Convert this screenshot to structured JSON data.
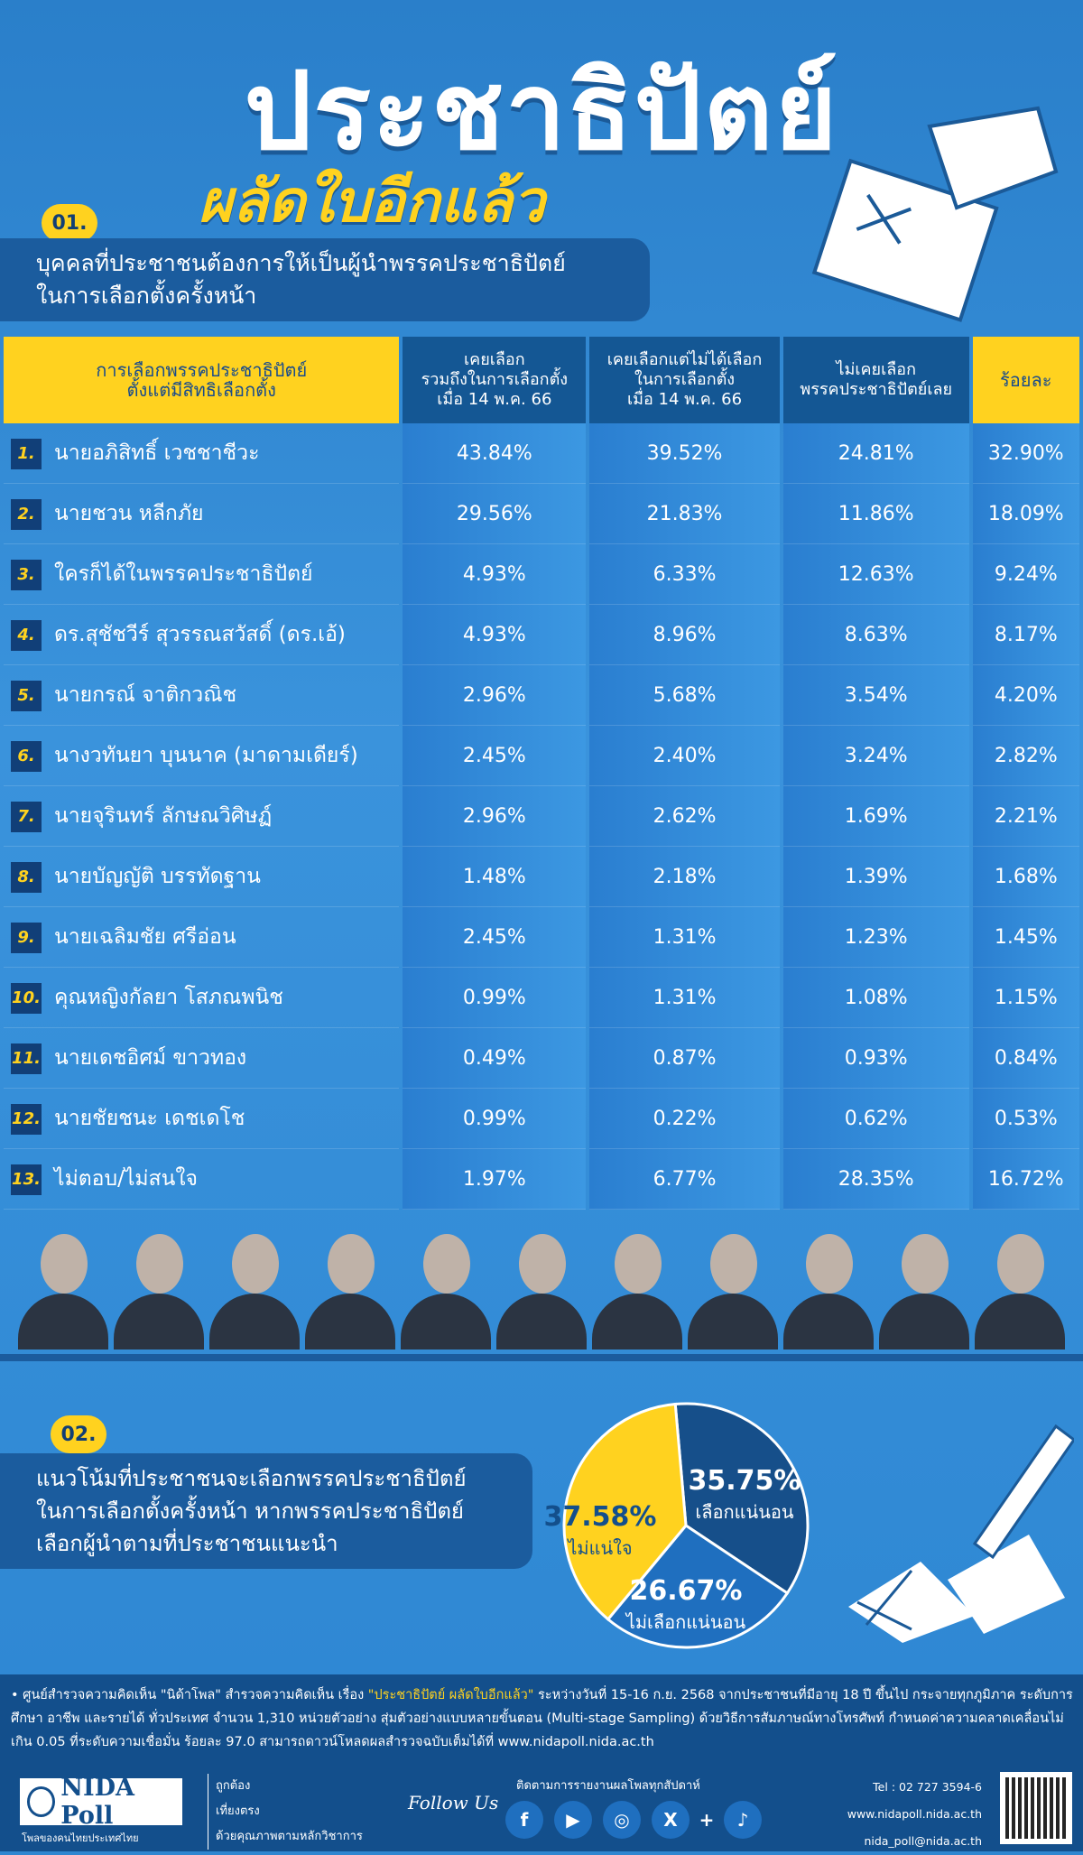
{
  "header": {
    "title": "ประชาธิปัตย์",
    "subtitle": "ผลัดใบอีกแล้ว"
  },
  "section1": {
    "badge": "01.",
    "heading_line1": "บุคคลที่ประชาชนต้องการให้เป็นผู้นำพรรคประชาธิปัตย์",
    "heading_line2": "ในการเลือกตั้งครั้งหน้า"
  },
  "section2": {
    "badge": "02.",
    "heading_line1": "แนวโน้มที่ประชาชนจะเลือกพรรคประชาธิปัตย์",
    "heading_line2": "ในการเลือกตั้งครั้งหน้า หากพรรคประชาธิปัตย์",
    "heading_line3": "เลือกผู้นำตามที่ประชาชนแนะนำ"
  },
  "colors": {
    "yellow": "#ffd21f",
    "navy": "#134f8c",
    "blue": "#2f86d0",
    "pie_navy": "#164f8a",
    "pie_blue": "#1f6fbf",
    "pie_yellow": "#ffd21f"
  },
  "chart_data": [
    {
      "type": "table",
      "columns": [
        {
          "line1": "การเลือกพรรคประชาธิปัตย์",
          "line2": "ตั้งแต่มีสิทธิเลือกตั้ง"
        },
        {
          "line1": "เคยเลือก",
          "line2": "รวมถึงในการเลือกตั้ง",
          "line3": "เมื่อ 14 พ.ค. 66"
        },
        {
          "line1": "เคยเลือกแต่ไม่ได้เลือก",
          "line2": "ในการเลือกตั้ง",
          "line3": "เมื่อ 14 พ.ค. 66"
        },
        {
          "line1": "ไม่เคยเลือก",
          "line2": "พรรคประชาธิปัตย์เลย"
        },
        {
          "line1": "ร้อยละ"
        }
      ],
      "rows": [
        {
          "num": "1.",
          "name": "นายอภิสิทธิ์ เวชชาชีวะ",
          "v": [
            "43.84%",
            "39.52%",
            "24.81%",
            "32.90%"
          ]
        },
        {
          "num": "2.",
          "name": "นายชวน หลีกภัย",
          "v": [
            "29.56%",
            "21.83%",
            "11.86%",
            "18.09%"
          ]
        },
        {
          "num": "3.",
          "name": "ใครก็ได้ในพรรคประชาธิปัตย์",
          "v": [
            "4.93%",
            "6.33%",
            "12.63%",
            "9.24%"
          ]
        },
        {
          "num": "4.",
          "name": "ดร.สุชัชวีร์ สุวรรณสวัสดิ์ (ดร.เอ้)",
          "v": [
            "4.93%",
            "8.96%",
            "8.63%",
            "8.17%"
          ]
        },
        {
          "num": "5.",
          "name": "นายกรณ์ จาติกวณิช",
          "v": [
            "2.96%",
            "5.68%",
            "3.54%",
            "4.20%"
          ]
        },
        {
          "num": "6.",
          "name": "นางวทันยา บุนนาค (มาดามเดียร์)",
          "v": [
            "2.45%",
            "2.40%",
            "3.24%",
            "2.82%"
          ]
        },
        {
          "num": "7.",
          "name": "นายจุรินทร์ ลักษณวิศิษฏ์",
          "v": [
            "2.96%",
            "2.62%",
            "1.69%",
            "2.21%"
          ]
        },
        {
          "num": "8.",
          "name": "นายบัญญัติ บรรทัดฐาน",
          "v": [
            "1.48%",
            "2.18%",
            "1.39%",
            "1.68%"
          ]
        },
        {
          "num": "9.",
          "name": "นายเฉลิมชัย ศรีอ่อน",
          "v": [
            "2.45%",
            "1.31%",
            "1.23%",
            "1.45%"
          ]
        },
        {
          "num": "10.",
          "name": "คุณหญิงกัลยา โสภณพนิช",
          "v": [
            "0.99%",
            "1.31%",
            "1.08%",
            "1.15%"
          ]
        },
        {
          "num": "11.",
          "name": "นายเดชอิศม์ ขาวทอง",
          "v": [
            "0.49%",
            "0.87%",
            "0.93%",
            "0.84%"
          ]
        },
        {
          "num": "12.",
          "name": "นายชัยชนะ เดชเดโช",
          "v": [
            "0.99%",
            "0.22%",
            "0.62%",
            "0.53%"
          ]
        },
        {
          "num": "13.",
          "name": "ไม่ตอบ/ไม่สนใจ",
          "v": [
            "1.97%",
            "6.77%",
            "28.35%",
            "16.72%"
          ]
        }
      ]
    },
    {
      "type": "pie",
      "slices": [
        {
          "label": "เลือกแน่นอน",
          "value": 35.75,
          "text": "35.75%",
          "color": "#164f8a"
        },
        {
          "label": "ไม่เลือกแน่นอน",
          "value": 26.67,
          "text": "26.67%",
          "color": "#1f6fbf"
        },
        {
          "label": "ไม่แน่ใจ",
          "value": 37.58,
          "text": "37.58%",
          "color": "#ffd21f"
        }
      ]
    }
  ],
  "footer": {
    "note_a": "• ศูนย์สำรวจความคิดเห็น \"นิด้าโพล\" สำรวจความคิดเห็น เรื่อง ",
    "note_title": "\"ประชาธิปัตย์ ผลัดใบอีกแล้ว\"",
    "note_b": " ระหว่างวันที่ 15-16 ก.ย. 2568 จากประชาชนที่มีอายุ 18 ปี ขึ้นไป กระจายทุกภูมิภาค ระดับการศึกษา อาชีพ และรายได้ ทั่วประเทศ จำนวน 1,310 หน่วยตัวอย่าง สุ่มตัวอย่างแบบหลายขั้นตอน (Multi-stage Sampling) ด้วยวิธีการสัมภาษณ์ทางโทรศัพท์ กำหนดค่าความคลาดเคลื่อนไม่เกิน 0.05 ที่ระดับความเชื่อมั่น ร้อยละ 97.0 สามารถดาวน์โหลดผลสำรวจฉบับเต็มได้ที่ www.nidapoll.nida.ac.th",
    "logo": "NIDA Poll",
    "logo_sub": "โพลของคนไทยประเทศไทย",
    "tagline": [
      "ถูกต้อง",
      "เที่ยงตรง",
      "ด้วยคุณภาพตามหลักวิชาการ"
    ],
    "follow": "Follow Us",
    "follow_text": "ติดตามการรายงานผลโพลทุกสัปดาห์",
    "social": [
      "f",
      "▶",
      "◎",
      "X",
      "+",
      "♪"
    ],
    "tel": "Tel : 02 727 3594-6",
    "web": "www.nidapoll.nida.ac.th",
    "email": "nida_poll@nida.ac.th"
  }
}
